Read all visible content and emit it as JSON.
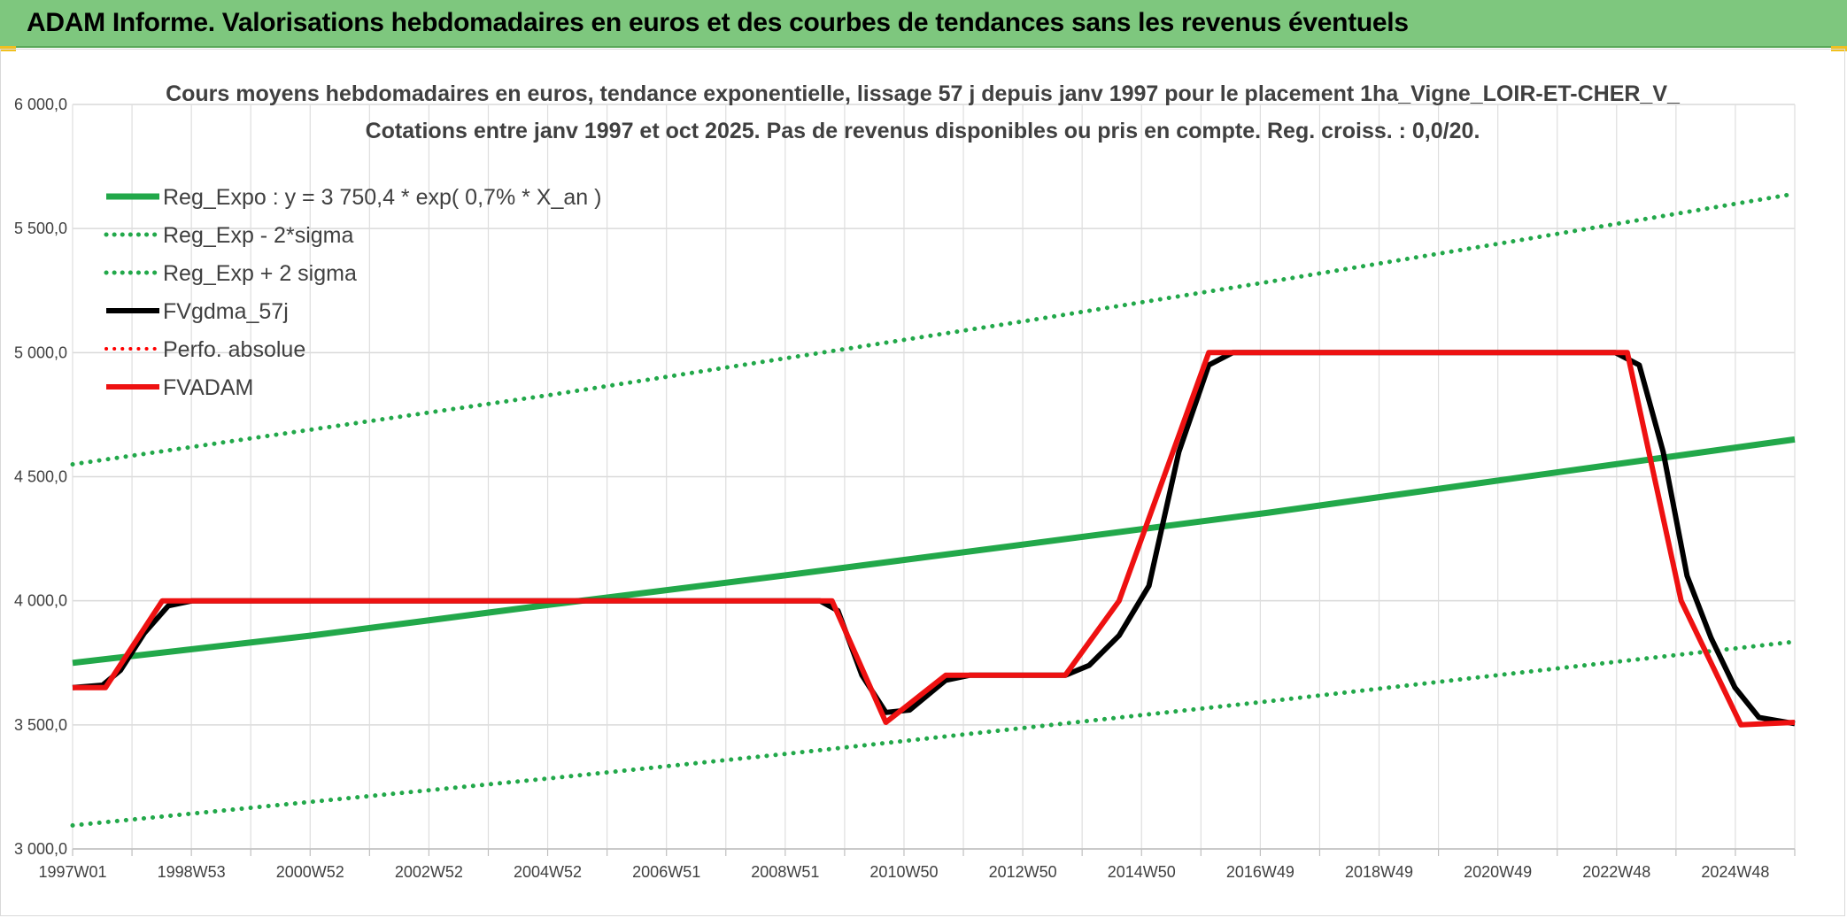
{
  "header": {
    "title": "ADAM Informe. Valorisations hebdomadaires en euros et des courbes de tendances sans les revenus éventuels"
  },
  "chart_data": {
    "type": "line",
    "title": "Cours moyens hebdomadaires en euros, tendance exponentielle, lissage 57 j depuis janv 1997 pour le placement 1ha_Vigne_LOIR-ET-CHER_V_",
    "subtitle": "Cotations entre janv 1997 et oct 2025. Pas de revenus disponibles ou pris en compte. Reg. croiss. : 0,0/20.",
    "xlabel": "",
    "ylabel": "",
    "x_ticks": [
      "1997W01",
      "1998W53",
      "2000W52",
      "2002W52",
      "2004W52",
      "2006W51",
      "2008W51",
      "2010W50",
      "2012W50",
      "2014W50",
      "2016W49",
      "2018W49",
      "2020W49",
      "2022W48",
      "2024W48"
    ],
    "y_ticks": [
      "3 000,0",
      "3 500,0",
      "4 000,0",
      "4 500,0",
      "5 000,0",
      "5 500,0",
      "6 000,0"
    ],
    "xlim": [
      1997.0,
      2025.8
    ],
    "ylim": [
      3000,
      6000
    ],
    "grid": true,
    "legend_position": "top-left",
    "series": [
      {
        "name": "Reg_Expo : y = 3 750,4 * exp( 0,7% *  X_an )",
        "color": "#22a84a",
        "style": "solid",
        "points": [
          [
            1997.0,
            3750
          ],
          [
            2001.0,
            3860
          ],
          [
            2005.0,
            3985
          ],
          [
            2009.0,
            4105
          ],
          [
            2013.0,
            4230
          ],
          [
            2017.0,
            4355
          ],
          [
            2021.0,
            4490
          ],
          [
            2025.8,
            4650
          ]
        ]
      },
      {
        "name": "Reg_Exp - 2*sigma",
        "color": "#22a84a",
        "style": "dotted",
        "points": [
          [
            1997.0,
            3095
          ],
          [
            2001.0,
            3190
          ],
          [
            2005.0,
            3285
          ],
          [
            2009.0,
            3385
          ],
          [
            2013.0,
            3490
          ],
          [
            2017.0,
            3595
          ],
          [
            2021.0,
            3705
          ],
          [
            2025.8,
            3835
          ]
        ]
      },
      {
        "name": "Reg_Exp + 2 sigma",
        "color": "#22a84a",
        "style": "dotted",
        "points": [
          [
            1997.0,
            4550
          ],
          [
            2001.0,
            4690
          ],
          [
            2005.0,
            4830
          ],
          [
            2009.0,
            4980
          ],
          [
            2013.0,
            5130
          ],
          [
            2017.0,
            5285
          ],
          [
            2021.0,
            5445
          ],
          [
            2025.8,
            5640
          ]
        ]
      },
      {
        "name": "FVgdma_57j",
        "color": "#000000",
        "style": "solid",
        "points": [
          [
            1997.0,
            3650
          ],
          [
            1997.5,
            3660
          ],
          [
            1997.8,
            3720
          ],
          [
            1998.2,
            3870
          ],
          [
            1998.6,
            3980
          ],
          [
            1999.0,
            4000
          ],
          [
            2009.5,
            4000
          ],
          [
            2009.8,
            3960
          ],
          [
            2010.2,
            3700
          ],
          [
            2010.6,
            3550
          ],
          [
            2011.0,
            3560
          ],
          [
            2011.6,
            3680
          ],
          [
            2012.0,
            3700
          ],
          [
            2013.6,
            3700
          ],
          [
            2014.0,
            3740
          ],
          [
            2014.5,
            3860
          ],
          [
            2015.0,
            4060
          ],
          [
            2015.5,
            4600
          ],
          [
            2016.0,
            4950
          ],
          [
            2016.4,
            5000
          ],
          [
            2022.8,
            5000
          ],
          [
            2023.2,
            4950
          ],
          [
            2023.6,
            4600
          ],
          [
            2024.0,
            4100
          ],
          [
            2024.4,
            3850
          ],
          [
            2024.8,
            3650
          ],
          [
            2025.2,
            3530
          ],
          [
            2025.8,
            3505
          ]
        ]
      },
      {
        "name": "Perfo. absolue",
        "color": "#ff0000",
        "style": "dotted",
        "points": []
      },
      {
        "name": "FVADAM",
        "color": "#ee1111",
        "style": "solid",
        "points": [
          [
            1997.0,
            3650
          ],
          [
            1997.55,
            3650
          ],
          [
            1998.5,
            4000
          ],
          [
            2009.7,
            4000
          ],
          [
            2010.6,
            3510
          ],
          [
            2011.6,
            3700
          ],
          [
            2013.6,
            3700
          ],
          [
            2014.5,
            4000
          ],
          [
            2016.0,
            5000
          ],
          [
            2023.0,
            5000
          ],
          [
            2023.9,
            4000
          ],
          [
            2024.9,
            3500
          ],
          [
            2025.8,
            3510
          ]
        ]
      }
    ]
  }
}
